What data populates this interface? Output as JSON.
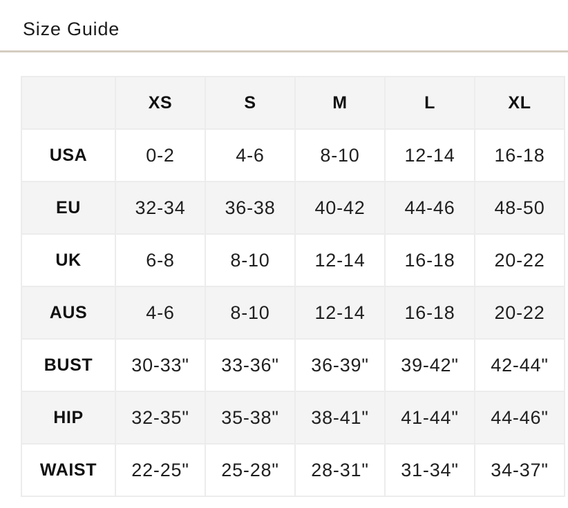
{
  "page": {
    "title": "Size Guide"
  },
  "colors": {
    "divider": "#d4cdc1",
    "row_alt_bg": "#f4f4f4",
    "grid_border": "#ececec",
    "text": "#1c1c1c"
  },
  "size_table": {
    "columns": [
      "",
      "XS",
      "S",
      "M",
      "L",
      "XL"
    ],
    "rows": [
      {
        "label": "USA",
        "values": [
          "0-2",
          "4-6",
          "8-10",
          "12-14",
          "16-18"
        ]
      },
      {
        "label": "EU",
        "values": [
          "32-34",
          "36-38",
          "40-42",
          "44-46",
          "48-50"
        ]
      },
      {
        "label": "UK",
        "values": [
          "6-8",
          "8-10",
          "12-14",
          "16-18",
          "20-22"
        ]
      },
      {
        "label": "AUS",
        "values": [
          "4-6",
          "8-10",
          "12-14",
          "16-18",
          "20-22"
        ]
      },
      {
        "label": "BUST",
        "values": [
          "30-33\"",
          "33-36\"",
          "36-39\"",
          "39-42\"",
          "42-44\""
        ]
      },
      {
        "label": "HIP",
        "values": [
          "32-35\"",
          "35-38\"",
          "38-41\"",
          "41-44\"",
          "44-46\""
        ]
      },
      {
        "label": "WAIST",
        "values": [
          "22-25\"",
          "25-28\"",
          "28-31\"",
          "31-34\"",
          "34-37\""
        ]
      }
    ]
  }
}
